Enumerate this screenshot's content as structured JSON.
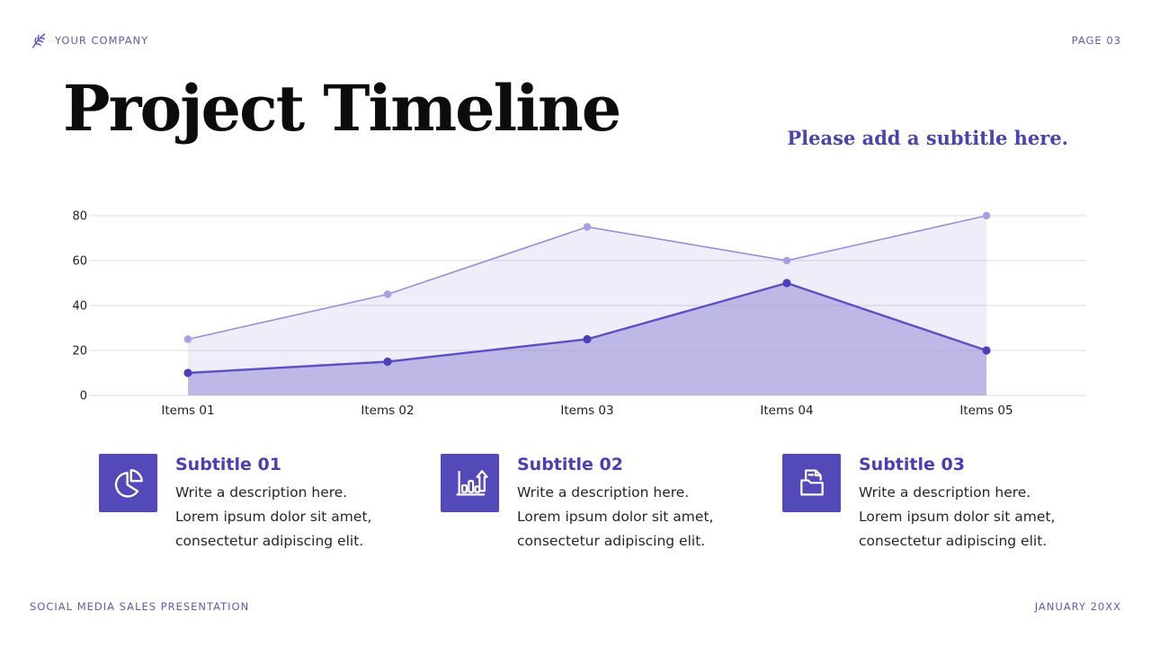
{
  "header": {
    "company": "YOUR COMPANY",
    "page": "PAGE 03",
    "logo_icon": "fern-leaf-icon"
  },
  "title": "Project Timeline",
  "subtitle": "Please add a subtitle here.",
  "chart_data": {
    "type": "area",
    "title": "",
    "xlabel": "",
    "ylabel": "",
    "categories": [
      "Items 01",
      "Items 02",
      "Items 03",
      "Items 04",
      "Items 05"
    ],
    "series": [
      {
        "name": "upper-series",
        "values": [
          25,
          45,
          75,
          60,
          80
        ],
        "line_color": "#988fdb",
        "marker_color": "#a59ee2",
        "fill_color": "rgba(150,143,219,0.16)"
      },
      {
        "name": "lower-series",
        "values": [
          10,
          15,
          25,
          50,
          20
        ],
        "line_color": "#5a4fc4",
        "marker_color": "#4c40b8",
        "fill_color": "rgba(124,113,205,0.42)"
      }
    ],
    "ylim": [
      0,
      80
    ],
    "yticks": [
      0,
      20,
      40,
      60,
      80
    ],
    "grid": true,
    "legend": false
  },
  "cards": [
    {
      "icon": "pie-chart-icon",
      "title": "Subtitle 01",
      "lines": [
        "Write a description here.",
        "Lorem ipsum dolor sit amet,",
        "consectetur adipiscing elit."
      ]
    },
    {
      "icon": "bar-chart-growth-icon",
      "title": "Subtitle 02",
      "lines": [
        "Write a description here.",
        "Lorem ipsum dolor sit amet,",
        "consectetur adipiscing elit."
      ]
    },
    {
      "icon": "folder-document-icon",
      "title": "Subtitle 03",
      "lines": [
        "Write a description here.",
        "Lorem ipsum dolor sit amet,",
        "consectetur adipiscing elit."
      ]
    }
  ],
  "footer": {
    "left": "SOCIAL MEDIA SALES PRESENTATION",
    "right": "JANUARY 20XX"
  },
  "colors": {
    "accent": "#6059c2",
    "tile": "#5349b8",
    "heading_purple": "#4a3eb5",
    "subtitle_purple": "#4a44ae",
    "title_black": "#0c0c0c",
    "gridline": "#e4e3e9"
  }
}
